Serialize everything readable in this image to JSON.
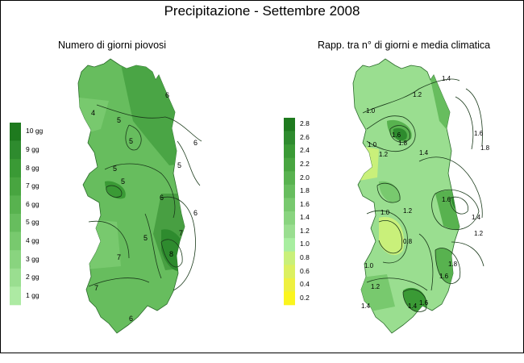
{
  "title": "Precipitazione - Settembre 2008",
  "maps": [
    {
      "subtitle": "Numero di giorni piovosi",
      "legend": {
        "labels": [
          "10 gg",
          "9 gg",
          "8 gg",
          "7 gg",
          "6 gg",
          "5 gg",
          "4 gg",
          "3 gg",
          "2 gg",
          "1 gg"
        ],
        "colors": [
          "#1e7a1e",
          "#2e8b2e",
          "#3a9a35",
          "#48a540",
          "#58b24f",
          "#67bd5e",
          "#78c96e",
          "#89d47f",
          "#9ade90",
          "#adeaa3"
        ]
      },
      "contour_labels": [
        "4",
        "5",
        "5",
        "5",
        "6",
        "6",
        "6",
        "6",
        "7",
        "7",
        "7",
        "8",
        "5",
        "5",
        "5",
        "6"
      ]
    },
    {
      "subtitle": "Rapp. tra n° di giorni e media climatica",
      "legend": {
        "labels": [
          "2.8",
          "2.6",
          "2.4",
          "2.2",
          "2.0",
          "1.8",
          "1.6",
          "1.4",
          "1.2",
          "1.0",
          "0.8",
          "0.6",
          "0.4",
          "0.2"
        ],
        "colors": [
          "#1e7a1e",
          "#2e8b2e",
          "#3a9a35",
          "#48a540",
          "#58b24f",
          "#67bd5e",
          "#78c96e",
          "#89d47f",
          "#9ade90",
          "#a8eea0",
          "#c9f07a",
          "#dcf060",
          "#eef040",
          "#fbf51e"
        ]
      },
      "contour_labels": [
        "1.0",
        "1.2",
        "1.4",
        "1.6",
        "1.8",
        "1.0",
        "1.2",
        "1.4",
        "1.6",
        "1.8",
        "1.0",
        "1.2",
        "0.8",
        "1.0",
        "1.2",
        "1.4",
        "1.6",
        "1.2",
        "1.4",
        "1.6",
        "1.8",
        "1.4",
        "1.6"
      ]
    }
  ]
}
